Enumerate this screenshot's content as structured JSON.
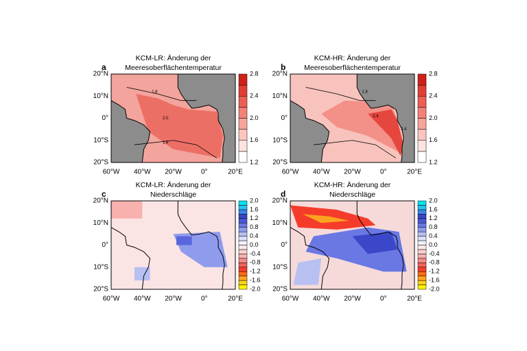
{
  "panels": [
    {
      "letter": "a",
      "title": [
        "KCM-LR: Änderung der",
        "Meeresoberflächentemperatur"
      ],
      "contour_labels": [
        "1.8",
        "2.0",
        "1.8"
      ],
      "colorbar_labels": [
        "2.8",
        "2.4",
        "2.0",
        "1.6",
        "1.2"
      ]
    },
    {
      "letter": "b",
      "title": [
        "KCM-HR: Änderung der",
        "Meeresoberflächentemperatur"
      ],
      "contour_labels": [
        "1.8",
        "2.4",
        "2.4"
      ],
      "colorbar_labels": [
        "2.8",
        "2.4",
        "2.0",
        "1.6",
        "1.2"
      ]
    },
    {
      "letter": "c",
      "title": [
        "KCM-LR: Änderung der",
        "Niederschläge"
      ],
      "colorbar_labels": [
        "2.0",
        "1.6",
        "1.2",
        "0.8",
        "0.4",
        "0.0",
        "-0.4",
        "-0.8",
        "-1.2",
        "-1.6",
        "-2.0"
      ]
    },
    {
      "letter": "d",
      "title": [
        "KCM-HR: Änderung der",
        "Niederschläge"
      ],
      "colorbar_labels": [
        "2.0",
        "1.6",
        "1.2",
        "0.8",
        "0.4",
        "0.0",
        "-0.4",
        "-0.8",
        "-1.2",
        "-1.6",
        "-2.0"
      ]
    }
  ],
  "lon_labels": [
    "60°W",
    "40°W",
    "20°W",
    "0°",
    "20°E"
  ],
  "lat_labels": [
    "20°N",
    "10°N",
    "0°",
    "10°S",
    "20°S"
  ]
}
